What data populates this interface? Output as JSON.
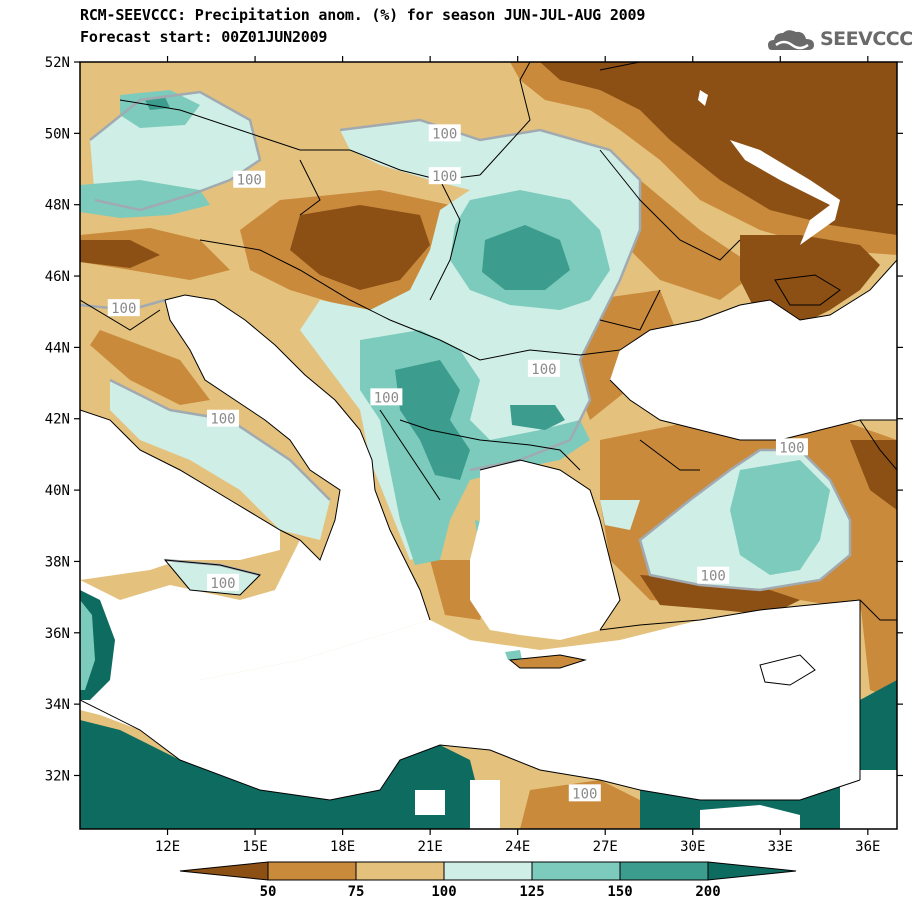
{
  "title": {
    "line1": "RCM-SEEVCCC: Precipitation anom. (%) for season JUN-JUL-AUG 2009",
    "line2": "Forecast start: 00Z01JUN2009"
  },
  "logo": {
    "text": "SEEVCCC",
    "icon": "cloud-icon"
  },
  "lon_range": [
    9.0,
    37.0
  ],
  "lat_range": [
    30.5,
    52.0
  ],
  "lat_ticks": [
    {
      "value": 52,
      "label": "52N"
    },
    {
      "value": 50,
      "label": "50N"
    },
    {
      "value": 48,
      "label": "48N"
    },
    {
      "value": 46,
      "label": "46N"
    },
    {
      "value": 44,
      "label": "44N"
    },
    {
      "value": 42,
      "label": "42N"
    },
    {
      "value": 40,
      "label": "40N"
    },
    {
      "value": 38,
      "label": "38N"
    },
    {
      "value": 36,
      "label": "36N"
    },
    {
      "value": 34,
      "label": "34N"
    },
    {
      "value": 32,
      "label": "32N"
    }
  ],
  "lon_ticks": [
    {
      "value": 12,
      "label": "12E"
    },
    {
      "value": 15,
      "label": "15E"
    },
    {
      "value": 18,
      "label": "18E"
    },
    {
      "value": 21,
      "label": "21E"
    },
    {
      "value": 24,
      "label": "24E"
    },
    {
      "value": 27,
      "label": "27E"
    },
    {
      "value": 30,
      "label": "30E"
    },
    {
      "value": 33,
      "label": "33E"
    },
    {
      "value": 36,
      "label": "36E"
    }
  ],
  "contour_labels": [
    {
      "text": "100",
      "lon": 21.5,
      "lat": 50.0
    },
    {
      "text": "100",
      "lon": 21.5,
      "lat": 48.8
    },
    {
      "text": "100",
      "lon": 14.8,
      "lat": 48.7
    },
    {
      "text": "100",
      "lon": 10.5,
      "lat": 45.1
    },
    {
      "text": "100",
      "lon": 24.9,
      "lat": 43.4
    },
    {
      "text": "100",
      "lon": 19.5,
      "lat": 42.6
    },
    {
      "text": "100",
      "lon": 13.9,
      "lat": 42.0
    },
    {
      "text": "100",
      "lon": 13.9,
      "lat": 37.4
    },
    {
      "text": "100",
      "lon": 30.7,
      "lat": 37.6
    },
    {
      "text": "100",
      "lon": 33.4,
      "lat": 41.2
    },
    {
      "text": "100",
      "lon": 26.3,
      "lat": 31.5
    }
  ],
  "colorbar": {
    "colors": [
      "#8c4f14",
      "#c98a3c",
      "#e4c27e",
      "#cfeee6",
      "#7ccbbd",
      "#3c9d8e",
      "#0d6b60"
    ],
    "labels": [
      "50",
      "75",
      "100",
      "125",
      "150",
      "200"
    ]
  },
  "palette": {
    "white": "#ffffff",
    "dark_brown": "#8c4f14",
    "brown": "#c98a3c",
    "tan": "#e4c27e",
    "light_teal": "#cfeee6",
    "teal": "#7ccbbd",
    "dark_teal": "#3c9d8e",
    "darkest_teal": "#0d6b60"
  }
}
